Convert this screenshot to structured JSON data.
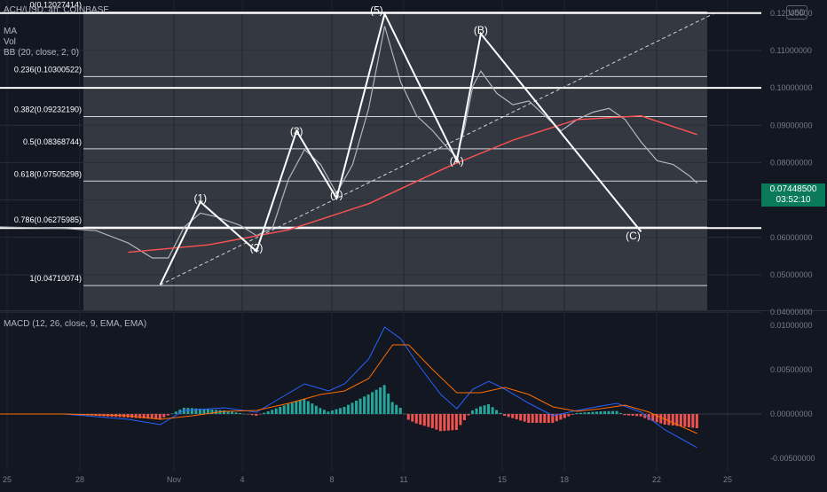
{
  "header": {
    "symbol_line": "ACH/USD, 4h, COINBASE",
    "ma_label": "MA",
    "vol_label": "Vol",
    "bb_label": "BB (20, close, 2, 0)"
  },
  "currency_button": "USD",
  "price_tag": {
    "price": "0.07448500",
    "countdown": "03:52:10",
    "color": "#0b7a5a"
  },
  "chart_data": [
    {
      "type": "line",
      "title": "ACH/USD, 4h, COINBASE",
      "description_series": "candles approximated as a close line",
      "y_axis": {
        "ticks": [
          "0.12000000",
          "0.11000000",
          "0.10000000",
          "0.09000000",
          "0.08000000",
          "0.07000000",
          "0.06000000",
          "0.05000000",
          "0.04000000"
        ],
        "ylim": [
          0.0405,
          0.1235
        ]
      },
      "x_axis": {
        "ticks": [
          "25",
          "28",
          "Nov",
          "4",
          "8",
          "11",
          "15",
          "18",
          "22",
          "25"
        ]
      },
      "fib_levels": [
        {
          "label": "0(0.12027414)",
          "value": 0.12027414
        },
        {
          "label": "0.236(0.10300522)",
          "value": 0.10300522
        },
        {
          "label": "0.382(0.09232190)",
          "value": 0.0923219
        },
        {
          "label": "0.5(0.08368744)",
          "value": 0.08368744
        },
        {
          "label": "0.618(0.07505298)",
          "value": 0.07505298
        },
        {
          "label": "0.786(0.06275985)",
          "value": 0.06275985
        },
        {
          "label": "1(0.04710074)",
          "value": 0.04710074
        }
      ],
      "horizontal_lines": [
        0.12,
        0.1,
        0.0625
      ],
      "wave_labels": [
        {
          "label": "(1)",
          "t": -21,
          "v": 0.0695
        },
        {
          "label": "(2)",
          "t": -14,
          "v": 0.0563
        },
        {
          "label": "(3)",
          "t": -9,
          "v": 0.0875
        },
        {
          "label": "(4)",
          "t": -4,
          "v": 0.0705
        },
        {
          "label": "(5)",
          "t": 1,
          "v": 0.1198
        },
        {
          "label": "(A)",
          "t": 11,
          "v": 0.0795
        },
        {
          "label": "(B)",
          "t": 14,
          "v": 0.1145
        },
        {
          "label": "(C)",
          "t": 33,
          "v": 0.0595
        }
      ],
      "wave_path": [
        {
          "t": -26,
          "v": 0.0473
        },
        {
          "t": -21,
          "v": 0.0695
        },
        {
          "t": -14,
          "v": 0.0563
        },
        {
          "t": -9,
          "v": 0.0885
        },
        {
          "t": -4,
          "v": 0.0705
        },
        {
          "t": 2,
          "v": 0.1198
        },
        {
          "t": 11,
          "v": 0.0805
        },
        {
          "t": 14,
          "v": 0.1145
        },
        {
          "t": 34,
          "v": 0.0615
        }
      ],
      "trend_line": [
        {
          "t": -26,
          "v": 0.0473
        },
        {
          "t": 43,
          "v": 0.1198
        }
      ],
      "series": [
        {
          "name": "price",
          "color": "#b2b5be",
          "points": [
            {
              "t": -46,
              "v": 0.0628
            },
            {
              "t": -42,
              "v": 0.0626
            },
            {
              "t": -38,
              "v": 0.0624
            },
            {
              "t": -34,
              "v": 0.0618
            },
            {
              "t": -30,
              "v": 0.0585
            },
            {
              "t": -27,
              "v": 0.0545
            },
            {
              "t": -25,
              "v": 0.0545
            },
            {
              "t": -23,
              "v": 0.0628
            },
            {
              "t": -21,
              "v": 0.0665
            },
            {
              "t": -19,
              "v": 0.0655
            },
            {
              "t": -16,
              "v": 0.0632
            },
            {
              "t": -14,
              "v": 0.0605
            },
            {
              "t": -12,
              "v": 0.0625
            },
            {
              "t": -10,
              "v": 0.0755
            },
            {
              "t": -8,
              "v": 0.0835
            },
            {
              "t": -6,
              "v": 0.0795
            },
            {
              "t": -4,
              "v": 0.0718
            },
            {
              "t": -2,
              "v": 0.0795
            },
            {
              "t": 0,
              "v": 0.0945
            },
            {
              "t": 2,
              "v": 0.1165
            },
            {
              "t": 4,
              "v": 0.1015
            },
            {
              "t": 6,
              "v": 0.0925
            },
            {
              "t": 8,
              "v": 0.0885
            },
            {
              "t": 10,
              "v": 0.0835
            },
            {
              "t": 11,
              "v": 0.0815
            },
            {
              "t": 12,
              "v": 0.0895
            },
            {
              "t": 13,
              "v": 0.1005
            },
            {
              "t": 14,
              "v": 0.1045
            },
            {
              "t": 16,
              "v": 0.0985
            },
            {
              "t": 18,
              "v": 0.0955
            },
            {
              "t": 20,
              "v": 0.0965
            },
            {
              "t": 22,
              "v": 0.0925
            },
            {
              "t": 24,
              "v": 0.0885
            },
            {
              "t": 26,
              "v": 0.0915
            },
            {
              "t": 28,
              "v": 0.0935
            },
            {
              "t": 30,
              "v": 0.0945
            },
            {
              "t": 32,
              "v": 0.0915
            },
            {
              "t": 34,
              "v": 0.0855
            },
            {
              "t": 36,
              "v": 0.0805
            },
            {
              "t": 38,
              "v": 0.0795
            },
            {
              "t": 40,
              "v": 0.0765
            },
            {
              "t": 41,
              "v": 0.0745
            }
          ]
        },
        {
          "name": "MA",
          "color": "#ff5252",
          "points": [
            {
              "t": -30,
              "v": 0.056
            },
            {
              "t": -20,
              "v": 0.058
            },
            {
              "t": -10,
              "v": 0.062
            },
            {
              "t": 0,
              "v": 0.069
            },
            {
              "t": 10,
              "v": 0.079
            },
            {
              "t": 18,
              "v": 0.086
            },
            {
              "t": 26,
              "v": 0.0915
            },
            {
              "t": 34,
              "v": 0.0925
            },
            {
              "t": 41,
              "v": 0.0875
            }
          ]
        }
      ]
    },
    {
      "type": "line",
      "title": "MACD (12, 26, close, 9, EMA, EMA)",
      "y_axis": {
        "ticks": [
          "0.01000000",
          "0.00500000",
          "0.00000000",
          "-0.00500000"
        ],
        "ylim": [
          -0.0065,
          0.0115
        ]
      },
      "series": [
        {
          "name": "MACD",
          "color": "#2962ff",
          "points": [
            {
              "t": -46,
              "v": 0.0
            },
            {
              "t": -38,
              "v": 0.0
            },
            {
              "t": -30,
              "v": -0.0006
            },
            {
              "t": -26,
              "v": -0.0012
            },
            {
              "t": -23,
              "v": 0.0004
            },
            {
              "t": -18,
              "v": 0.0007
            },
            {
              "t": -14,
              "v": 0.0002
            },
            {
              "t": -11,
              "v": 0.0018
            },
            {
              "t": -8,
              "v": 0.0034
            },
            {
              "t": -5,
              "v": 0.0026
            },
            {
              "t": -3,
              "v": 0.0034
            },
            {
              "t": 0,
              "v": 0.0062
            },
            {
              "t": 2,
              "v": 0.0098
            },
            {
              "t": 4,
              "v": 0.0085
            },
            {
              "t": 6,
              "v": 0.0058
            },
            {
              "t": 9,
              "v": 0.0022
            },
            {
              "t": 11,
              "v": 0.0006
            },
            {
              "t": 13,
              "v": 0.0028
            },
            {
              "t": 15,
              "v": 0.0037
            },
            {
              "t": 17,
              "v": 0.0028
            },
            {
              "t": 20,
              "v": 0.0012
            },
            {
              "t": 23,
              "v": -0.0002
            },
            {
              "t": 26,
              "v": 0.0004
            },
            {
              "t": 29,
              "v": 0.0009
            },
            {
              "t": 31,
              "v": 0.0012
            },
            {
              "t": 34,
              "v": 0.0002
            },
            {
              "t": 37,
              "v": -0.0018
            },
            {
              "t": 39,
              "v": -0.0028
            },
            {
              "t": 41,
              "v": -0.0038
            }
          ]
        },
        {
          "name": "Signal",
          "color": "#ff6d00",
          "points": [
            {
              "t": -46,
              "v": 0.0
            },
            {
              "t": -38,
              "v": 0.0
            },
            {
              "t": -30,
              "v": -0.0002
            },
            {
              "t": -26,
              "v": -0.0006
            },
            {
              "t": -22,
              "v": -0.0002
            },
            {
              "t": -18,
              "v": 0.0003
            },
            {
              "t": -14,
              "v": 0.0004
            },
            {
              "t": -10,
              "v": 0.0012
            },
            {
              "t": -6,
              "v": 0.0022
            },
            {
              "t": -3,
              "v": 0.0026
            },
            {
              "t": 0,
              "v": 0.004
            },
            {
              "t": 3,
              "v": 0.0078
            },
            {
              "t": 5,
              "v": 0.0078
            },
            {
              "t": 8,
              "v": 0.005
            },
            {
              "t": 11,
              "v": 0.0024
            },
            {
              "t": 14,
              "v": 0.0024
            },
            {
              "t": 17,
              "v": 0.003
            },
            {
              "t": 20,
              "v": 0.0022
            },
            {
              "t": 23,
              "v": 0.0008
            },
            {
              "t": 26,
              "v": 0.0003
            },
            {
              "t": 29,
              "v": 0.0006
            },
            {
              "t": 32,
              "v": 0.001
            },
            {
              "t": 35,
              "v": 0.0002
            },
            {
              "t": 38,
              "v": -0.001
            },
            {
              "t": 41,
              "v": -0.0022
            }
          ]
        }
      ],
      "histogram_color_up": "#26a69a",
      "histogram_color_down": "#ef5350"
    }
  ]
}
